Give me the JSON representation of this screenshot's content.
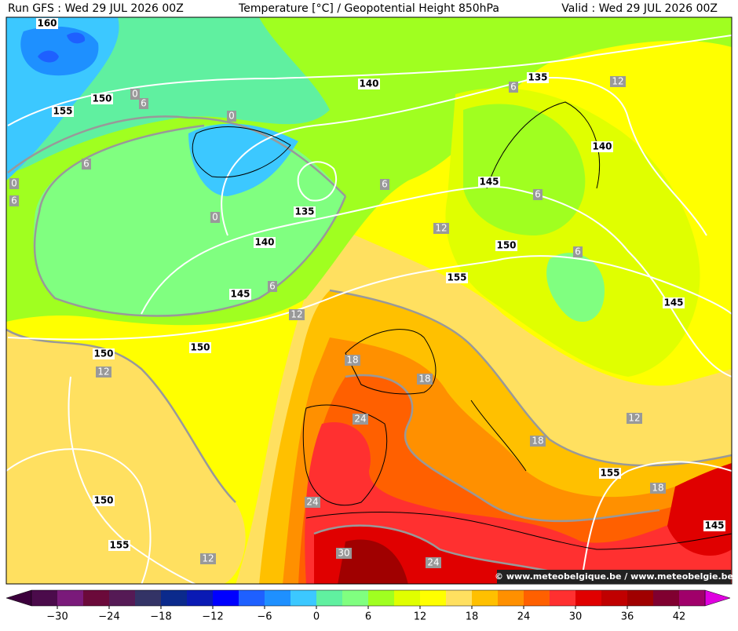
{
  "header": {
    "run": "Run GFS : Wed 29 JUL 2026 00Z",
    "title": "Temperature [°C] / Geopotential Height 850hPa",
    "valid": "Valid : Wed 29 JUL 2026 00Z"
  },
  "contours": {
    "height_labels": [
      160,
      155,
      150,
      140,
      135,
      140,
      145,
      135,
      140,
      150,
      155,
      145,
      145,
      150,
      150,
      155,
      150,
      155,
      145
    ],
    "temperature_labels": [
      0,
      6,
      0,
      6,
      0,
      6,
      0,
      6,
      6,
      12,
      6,
      6,
      12,
      6,
      12,
      18,
      12,
      18,
      24,
      12,
      18,
      18,
      24,
      30,
      24,
      12
    ]
  },
  "colorbar": {
    "bounds": [
      -33,
      -30,
      -27,
      -24,
      -21,
      -18,
      -15,
      -12,
      -9,
      -6,
      -3,
      0,
      3,
      6,
      9,
      12,
      15,
      18,
      21,
      24,
      27,
      30,
      33,
      36,
      39,
      42,
      45
    ],
    "colors": [
      "#4b0b4b",
      "#7a1a7a",
      "#6b0a3a",
      "#551a55",
      "#333366",
      "#0b2a8c",
      "#0a1ab4",
      "#0000ff",
      "#1e60ff",
      "#1e90ff",
      "#3cc8ff",
      "#60f0a0",
      "#80ff80",
      "#a0ff20",
      "#e0ff00",
      "#ffff00",
      "#ffe060",
      "#ffc000",
      "#ff9000",
      "#ff6000",
      "#ff3030",
      "#e00000",
      "#c00000",
      "#a00000",
      "#800030",
      "#a0006a"
    ],
    "under_color": "#3c003c",
    "over_color": "#e000e0",
    "ticks": [
      {
        "value": -30,
        "label": "−30"
      },
      {
        "value": -24,
        "label": "−24"
      },
      {
        "value": -18,
        "label": "−18"
      },
      {
        "value": -12,
        "label": "−12"
      },
      {
        "value": -6,
        "label": "−6"
      },
      0,
      6,
      12,
      18,
      24,
      30,
      36,
      42
    ]
  },
  "watermark": "© www.meteobelgique.be / www.meteobelgie.be"
}
